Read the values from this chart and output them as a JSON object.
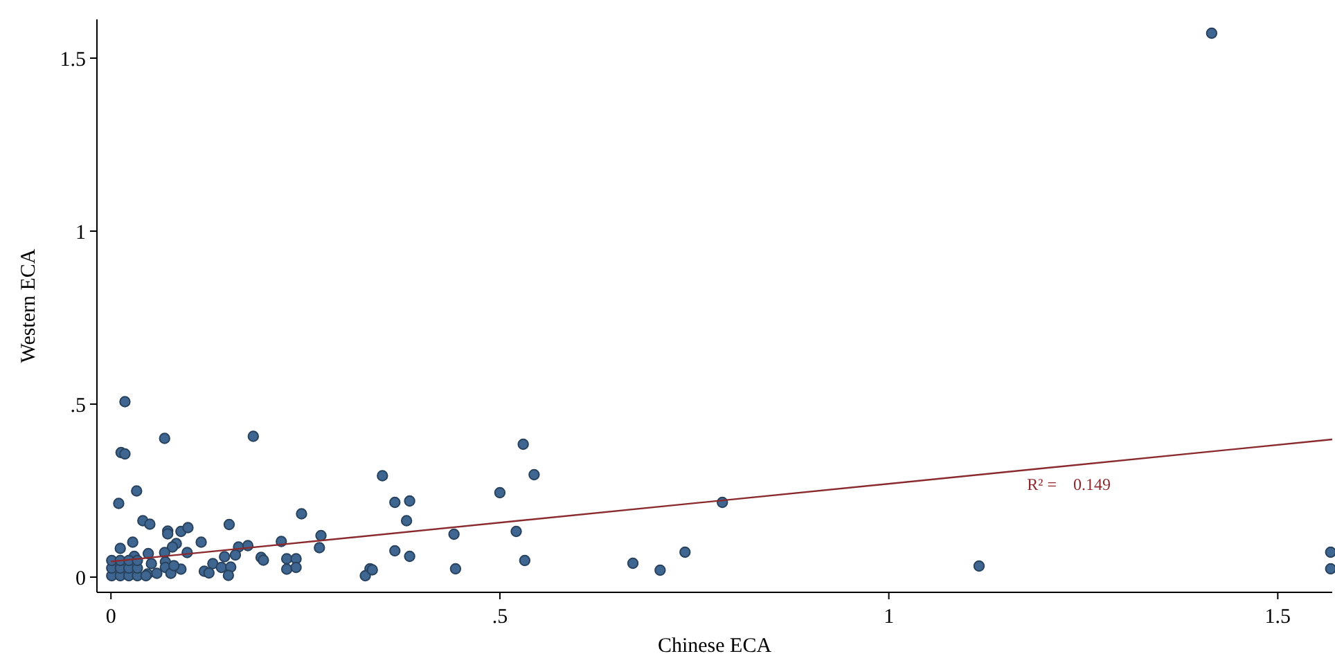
{
  "chart_data": {
    "type": "scatter",
    "xlabel": "Chinese ECA",
    "ylabel": "Western ECA",
    "xlim": [
      -0.018,
      1.57
    ],
    "ylim": [
      -0.044,
      1.612
    ],
    "xticks": [
      0,
      {
        "value": 0.5,
        "label": ".5"
      },
      1,
      1.5
    ],
    "yticks": [
      0,
      {
        "value": 0.5,
        "label": ".5"
      },
      1,
      1.5
    ],
    "grid": false,
    "marker": "circle",
    "annotations": [
      "R² =    0.149"
    ],
    "series": [
      {
        "color": "#3e6690",
        "x": [
          1.415,
          1.568,
          1.568,
          1.116,
          0.786,
          0.738,
          0.706,
          0.671,
          0.53,
          0.544,
          0.532,
          0.521,
          0.5,
          0.441,
          0.443,
          0.384,
          0.38,
          0.384,
          0.365,
          0.365,
          0.349,
          0.333,
          0.327,
          0.336,
          0.018,
          0.069,
          0.183,
          0.013,
          0.018,
          0.033,
          0.01,
          0.245,
          0.041,
          0.05,
          0.152,
          0.073,
          0.073,
          0.09,
          0.099,
          0.028,
          0.012,
          0.116,
          0.084,
          0.079,
          0.069,
          0.048,
          0.098,
          0.03,
          0.164,
          0.176,
          0.219,
          0.27,
          0.268,
          0.146,
          0.16,
          0.193,
          0.196,
          0.226,
          0.238,
          0.226,
          0.238,
          0.131,
          0.142,
          0.154,
          0.151,
          0.12,
          0.126,
          0.052,
          0.047,
          0.059,
          0.07,
          0.07,
          0.077,
          0.09,
          0.081,
          0.001,
          0.012,
          0.023,
          0.034,
          0.045,
          0.001,
          0.012,
          0.023,
          0.034,
          0.001,
          0.012,
          0.023,
          0.034
        ],
        "values": [
          1.572,
          0.072,
          0.024,
          0.032,
          0.216,
          0.072,
          0.02,
          0.04,
          0.384,
          0.296,
          0.048,
          0.132,
          0.244,
          0.124,
          0.024,
          0.22,
          0.163,
          0.06,
          0.216,
          0.076,
          0.293,
          0.024,
          0.004,
          0.021,
          0.507,
          0.401,
          0.407,
          0.36,
          0.356,
          0.249,
          0.213,
          0.183,
          0.163,
          0.153,
          0.152,
          0.133,
          0.125,
          0.132,
          0.143,
          0.101,
          0.083,
          0.101,
          0.097,
          0.087,
          0.071,
          0.068,
          0.071,
          0.06,
          0.087,
          0.091,
          0.103,
          0.12,
          0.085,
          0.059,
          0.064,
          0.057,
          0.049,
          0.053,
          0.053,
          0.023,
          0.028,
          0.039,
          0.028,
          0.029,
          0.005,
          0.017,
          0.012,
          0.039,
          0.009,
          0.011,
          0.044,
          0.028,
          0.011,
          0.023,
          0.033,
          0.004,
          0.004,
          0.004,
          0.004,
          0.004,
          0.026,
          0.026,
          0.026,
          0.026,
          0.048,
          0.048,
          0.048,
          0.048
        ]
      },
      {
        "type": "line",
        "marker": "none",
        "color": "#8b2a2e",
        "x": [
          0,
          1.57
        ],
        "values": [
          0.045,
          0.398
        ]
      }
    ]
  }
}
